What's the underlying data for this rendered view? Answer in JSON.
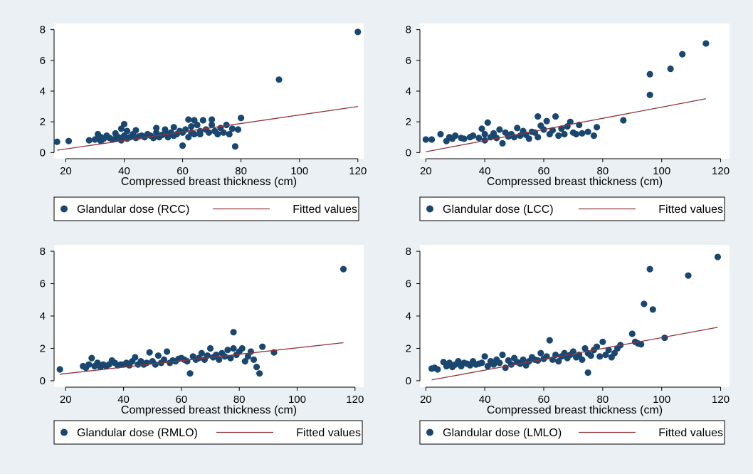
{
  "style": {
    "background": "#eaf0f3",
    "plot_background": "#ffffff",
    "marker_color": "#1a476f",
    "fit_line_color": "#90353b"
  },
  "chart_data": [
    {
      "type": "scatter",
      "xlabel": "Compressed breast thickness (cm)",
      "ylabel": "",
      "xlim": [
        16,
        122
      ],
      "ylim": [
        -0.4,
        8.4
      ],
      "xticks": [
        20,
        40,
        60,
        80,
        100,
        120
      ],
      "yticks": [
        0,
        2,
        4,
        6,
        8
      ],
      "grid": false,
      "legend_position": "bottom",
      "series": [
        {
          "name": "Glandular dose (RCC)",
          "kind": "points",
          "x": [
            17,
            21,
            28,
            30,
            31,
            32,
            32,
            33,
            34,
            35,
            36,
            37,
            37,
            38,
            39,
            39,
            40,
            40,
            41,
            41,
            42,
            43,
            44,
            44,
            45,
            46,
            47,
            48,
            49,
            50,
            51,
            51,
            52,
            53,
            54,
            55,
            55,
            56,
            57,
            57,
            58,
            59,
            60,
            60,
            61,
            62,
            62,
            63,
            63,
            64,
            64,
            65,
            66,
            66,
            67,
            68,
            69,
            70,
            70,
            71,
            72,
            73,
            74,
            75,
            76,
            77,
            78,
            79,
            80,
            93,
            120
          ],
          "y": [
            0.7,
            0.75,
            0.8,
            0.85,
            1.2,
            1.0,
            0.75,
            0.9,
            1.1,
            0.95,
            0.85,
            0.9,
            1.25,
            1.0,
            1.55,
            0.8,
            1.1,
            1.85,
            0.9,
            1.4,
            1.0,
            1.2,
            0.95,
            1.45,
            1.05,
            1.1,
            1.0,
            1.2,
            1.1,
            0.95,
            1.3,
            1.6,
            1.0,
            1.15,
            1.5,
            1.2,
            1.0,
            1.3,
            1.1,
            1.65,
            1.2,
            1.4,
            0.45,
            1.3,
            1.5,
            2.15,
            1.0,
            1.7,
            1.3,
            2.1,
            1.2,
            1.8,
            1.2,
            1.4,
            2.1,
            1.5,
            1.3,
            1.8,
            2.15,
            1.4,
            1.2,
            1.6,
            1.3,
            1.8,
            1.2,
            1.55,
            0.4,
            1.5,
            2.25,
            4.75,
            7.85
          ]
        },
        {
          "name": "Fitted values",
          "kind": "line",
          "x": [
            17,
            120
          ],
          "y": [
            0.15,
            3.0
          ]
        }
      ]
    },
    {
      "type": "scatter",
      "xlabel": "Compressed breast thickness (cm)",
      "ylabel": "",
      "xlim": [
        18,
        123
      ],
      "ylim": [
        -0.4,
        8.4
      ],
      "xticks": [
        20,
        40,
        60,
        80,
        100,
        120
      ],
      "yticks": [
        0,
        2,
        4,
        6,
        8
      ],
      "grid": false,
      "legend_position": "bottom",
      "series": [
        {
          "name": "Glandular dose (LCC)",
          "kind": "points",
          "x": [
            20,
            22,
            25,
            27,
            28,
            29,
            30,
            32,
            33,
            35,
            36,
            38,
            39,
            40,
            40,
            41,
            42,
            43,
            44,
            45,
            46,
            47,
            48,
            49,
            50,
            51,
            52,
            53,
            54,
            55,
            56,
            57,
            58,
            58,
            59,
            60,
            61,
            62,
            63,
            64,
            65,
            66,
            67,
            68,
            69,
            70,
            71,
            72,
            73,
            75,
            77,
            78,
            87,
            96,
            96,
            103,
            107,
            115
          ],
          "y": [
            0.85,
            0.85,
            1.2,
            0.75,
            1.0,
            0.9,
            1.1,
            0.95,
            0.9,
            1.0,
            1.1,
            0.95,
            1.55,
            1.2,
            0.8,
            1.95,
            1.0,
            1.25,
            0.95,
            1.5,
            0.6,
            1.3,
            1.05,
            1.2,
            1.0,
            1.6,
            1.1,
            1.4,
            1.15,
            0.9,
            1.35,
            1.3,
            2.35,
            1.0,
            1.75,
            1.5,
            2.05,
            1.2,
            1.45,
            2.35,
            1.1,
            1.55,
            1.2,
            1.7,
            2.0,
            1.3,
            1.2,
            1.8,
            1.25,
            1.35,
            1.1,
            1.65,
            2.1,
            3.75,
            5.1,
            5.45,
            6.4,
            7.1
          ]
        },
        {
          "name": "Fitted values",
          "kind": "line",
          "x": [
            20,
            115
          ],
          "y": [
            0.05,
            3.5
          ]
        }
      ]
    },
    {
      "type": "scatter",
      "xlabel": "Compressed breast thickness (cm)",
      "ylabel": "",
      "xlim": [
        16,
        123
      ],
      "ylim": [
        -0.4,
        8.4
      ],
      "xticks": [
        20,
        40,
        60,
        80,
        100,
        120
      ],
      "yticks": [
        0,
        2,
        4,
        6,
        8
      ],
      "grid": false,
      "legend_position": "bottom",
      "series": [
        {
          "name": "Glandular dose (RMLO)",
          "kind": "points",
          "x": [
            18,
            26,
            27,
            28,
            29,
            30,
            31,
            32,
            33,
            34,
            35,
            36,
            37,
            38,
            39,
            40,
            41,
            42,
            43,
            44,
            45,
            46,
            47,
            48,
            49,
            50,
            51,
            52,
            53,
            54,
            55,
            56,
            57,
            58,
            59,
            60,
            61,
            62,
            63,
            64,
            65,
            66,
            67,
            68,
            69,
            70,
            71,
            72,
            73,
            74,
            75,
            76,
            77,
            78,
            78,
            79,
            80,
            81,
            82,
            83,
            84,
            85,
            86,
            87,
            88,
            92,
            116
          ],
          "y": [
            0.7,
            0.9,
            0.8,
            1.0,
            1.4,
            0.9,
            1.1,
            0.85,
            1.0,
            0.9,
            1.0,
            1.25,
            1.1,
            0.95,
            1.0,
            1.0,
            1.1,
            0.95,
            1.2,
            1.45,
            1.0,
            1.2,
            1.0,
            1.1,
            1.75,
            1.2,
            1.0,
            1.55,
            1.1,
            1.3,
            1.8,
            1.1,
            1.25,
            1.2,
            1.35,
            1.4,
            1.3,
            1.2,
            0.45,
            1.5,
            1.3,
            1.4,
            1.7,
            1.3,
            1.55,
            2.0,
            1.45,
            1.6,
            1.3,
            1.7,
            1.5,
            1.9,
            1.4,
            2.0,
            3.0,
            1.6,
            1.8,
            2.0,
            1.2,
            1.5,
            1.8,
            1.3,
            0.85,
            0.45,
            2.1,
            1.75,
            6.9
          ]
        },
        {
          "name": "Fitted values",
          "kind": "line",
          "x": [
            18,
            116
          ],
          "y": [
            0.4,
            2.35
          ]
        }
      ]
    },
    {
      "type": "scatter",
      "xlabel": "Compressed breast thickness (cm)",
      "ylabel": "",
      "xlim": [
        18,
        123
      ],
      "ylim": [
        -0.4,
        8.4
      ],
      "xticks": [
        20,
        40,
        60,
        80,
        100,
        120
      ],
      "yticks": [
        0,
        2,
        4,
        6,
        8
      ],
      "grid": false,
      "legend_position": "bottom",
      "series": [
        {
          "name": "Glandular dose (LMLO)",
          "kind": "points",
          "x": [
            22,
            23,
            24,
            26,
            27,
            28,
            29,
            30,
            31,
            32,
            33,
            34,
            35,
            36,
            37,
            38,
            39,
            40,
            41,
            42,
            43,
            44,
            45,
            46,
            47,
            48,
            49,
            50,
            51,
            52,
            53,
            54,
            55,
            56,
            57,
            58,
            59,
            60,
            61,
            62,
            63,
            64,
            65,
            66,
            67,
            68,
            69,
            70,
            71,
            72,
            73,
            74,
            75,
            75,
            76,
            77,
            78,
            79,
            80,
            81,
            82,
            83,
            84,
            85,
            86,
            90,
            91,
            92,
            93,
            94,
            96,
            97,
            101,
            109,
            119
          ],
          "y": [
            0.75,
            0.8,
            0.7,
            1.15,
            0.9,
            1.1,
            0.85,
            1.0,
            1.2,
            0.9,
            1.1,
            1.05,
            0.95,
            1.2,
            1.0,
            1.05,
            1.1,
            1.5,
            0.9,
            1.2,
            1.0,
            1.3,
            1.1,
            1.6,
            0.8,
            1.25,
            1.0,
            1.4,
            1.15,
            1.05,
            1.3,
            0.95,
            1.2,
            1.45,
            1.3,
            1.25,
            1.7,
            1.35,
            1.5,
            2.5,
            1.3,
            1.6,
            1.2,
            1.5,
            1.7,
            1.4,
            1.6,
            1.8,
            1.45,
            1.6,
            1.3,
            2.0,
            0.5,
            1.7,
            1.55,
            1.9,
            2.1,
            1.5,
            2.4,
            1.6,
            1.9,
            1.45,
            1.7,
            2.0,
            2.2,
            2.9,
            2.4,
            2.3,
            2.25,
            4.75,
            6.9,
            4.4,
            2.65,
            6.5,
            7.65
          ]
        },
        {
          "name": "Fitted values",
          "kind": "line",
          "x": [
            22,
            119
          ],
          "y": [
            0.05,
            3.3
          ]
        }
      ]
    }
  ]
}
